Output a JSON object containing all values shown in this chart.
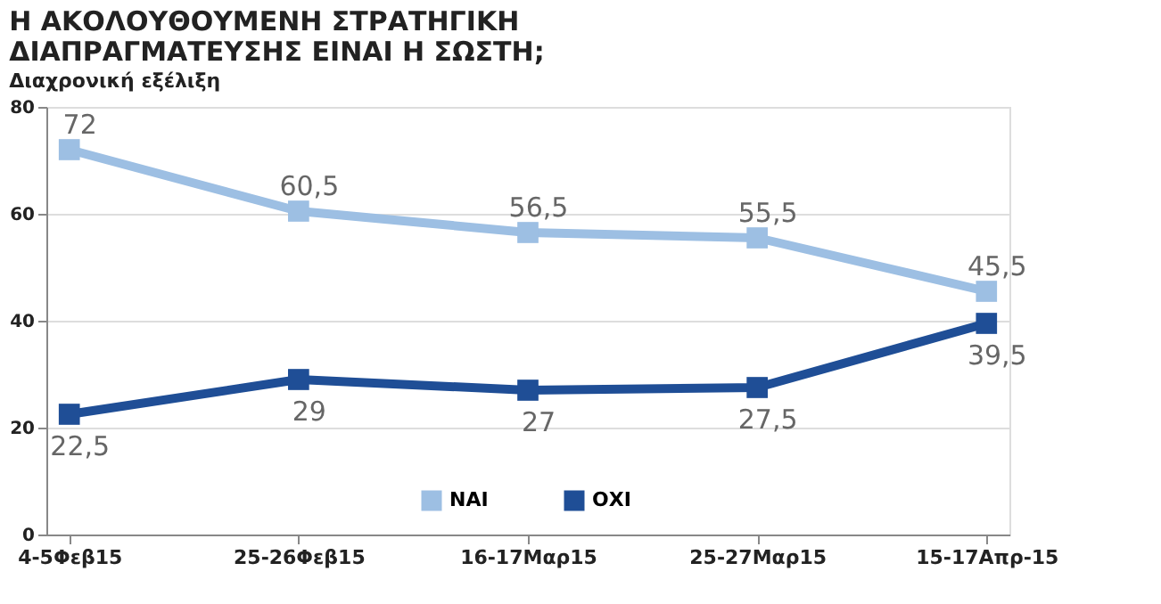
{
  "chart_data": {
    "type": "line",
    "title": [
      "Η ΑΚΟΛΟΥΘΟΥΜΕΝΗ ΣΤΡΑΤΗΓΙΚΗ",
      "ΔΙΑΠΡΑΓΜΑΤΕΥΣΗΣ ΕΙΝΑΙ Η ΣΩΣΤΗ;"
    ],
    "subtitle": "Διαχρονική εξέλιξη",
    "categories": [
      "4-5Φεβ15",
      "25-26Φεβ15",
      "16-17Μαρ15",
      "25-27Μαρ15",
      "15-17Απρ-15"
    ],
    "series": [
      {
        "name": "ΝΑΙ",
        "color": "#9dbfe3",
        "values": [
          72,
          60.5,
          56.5,
          55.5,
          45.5
        ],
        "value_labels": [
          "72",
          "60,5",
          "56,5",
          "55,5",
          "45,5"
        ]
      },
      {
        "name": "ΟΧΙ",
        "color": "#1f4e96",
        "values": [
          22.5,
          29,
          27,
          27.5,
          39.5
        ],
        "value_labels": [
          "22,5",
          "29",
          "27",
          "27,5",
          "39,5"
        ]
      }
    ],
    "ylim": [
      0,
      80
    ],
    "yticks": [
      0,
      20,
      40,
      60,
      80
    ],
    "grid": "y",
    "legend": "bottom",
    "marker": "square",
    "line_style": "solid"
  }
}
